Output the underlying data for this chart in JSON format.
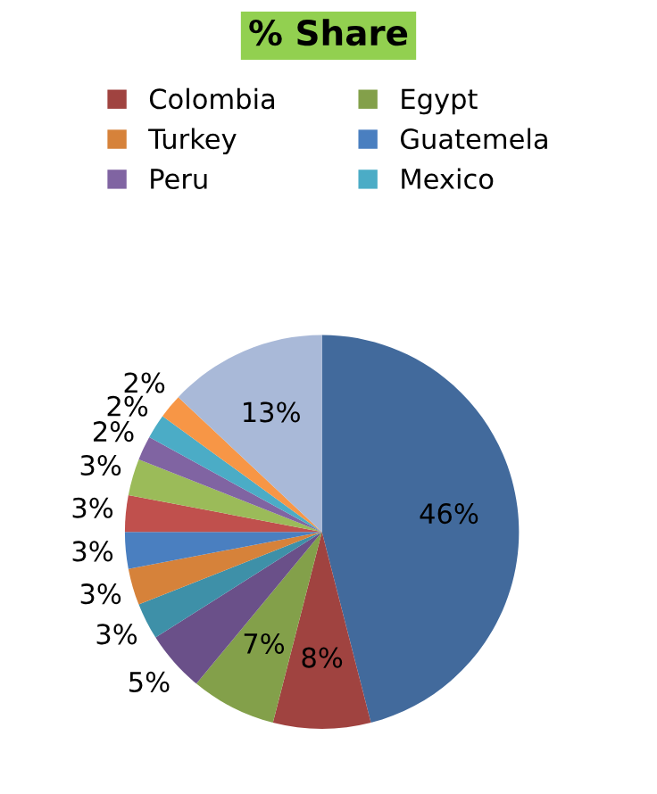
{
  "chart_data": {
    "type": "pie",
    "title": "% Share",
    "categories": [
      null,
      "Colombia",
      "Egypt",
      null,
      null,
      "Turkey",
      "Guatemela",
      null,
      null,
      "Peru",
      "Mexico",
      null,
      null
    ],
    "values": [
      46,
      8,
      7,
      5,
      3,
      3,
      3,
      3,
      3,
      2,
      2,
      2,
      13
    ],
    "colors": [
      "#426a9c",
      "#a04340",
      "#83a04a",
      "#6a5089",
      "#3e90a8",
      "#d6823a",
      "#4a7fc0",
      "#c0504d",
      "#9bbb59",
      "#8064a2",
      "#4bacc6",
      "#f79646",
      "#a9b9d8"
    ],
    "value_labels": [
      "46%",
      "8%",
      "7%",
      "5%",
      "3%",
      "3%",
      "3%",
      "3%",
      "3%",
      "2%",
      "2%",
      "2%",
      "13%"
    ],
    "legend": "top"
  }
}
